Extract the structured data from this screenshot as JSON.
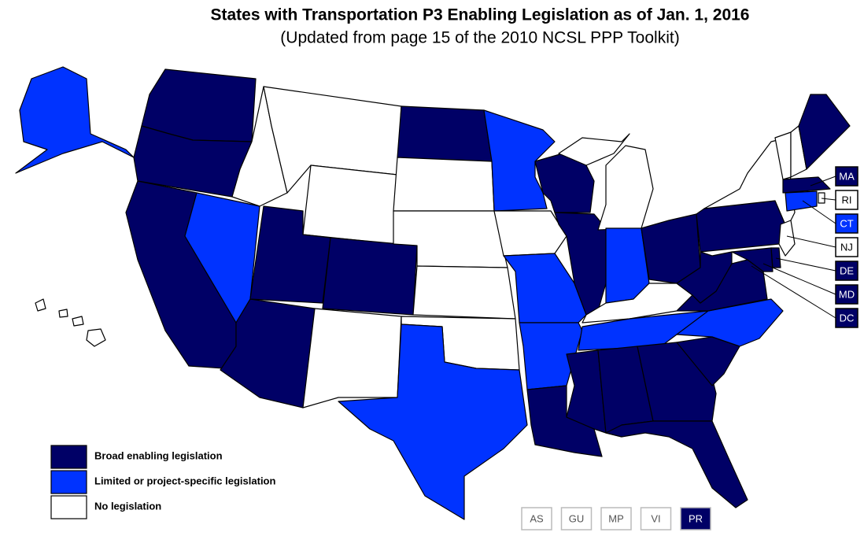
{
  "title": "States with Transportation P3 Enabling Legislation as of Jan. 1, 2016",
  "subtitle": "(Updated from page 15 of the 2010 NCSL PPP Toolkit)",
  "legend": [
    {
      "label": "Broad enabling legislation",
      "color": "#000066"
    },
    {
      "label": "Limited or project-specific legislation",
      "color": "#0033ff"
    },
    {
      "label": "No legislation",
      "color": "#ffffff"
    }
  ],
  "states": [
    0,
    0,
    0,
    1,
    2,
    2,
    2,
    0,
    0,
    0,
    2,
    0,
    2,
    2,
    2,
    2,
    1,
    1,
    2,
    1,
    1,
    0,
    0,
    0,
    2,
    2,
    1,
    0,
    2,
    1,
    0,
    0,
    0,
    0,
    0,
    1,
    0,
    0,
    0,
    2,
    2,
    2,
    0,
    0,
    2,
    1,
    2,
    0,
    0,
    1,
    2,
    2,
    2,
    2
  ],
  "callouts": [
    {
      "label": "MA",
      "category": 0
    },
    {
      "label": "RI",
      "category": 2
    },
    {
      "label": "CT",
      "category": 1
    },
    {
      "label": "NJ",
      "category": 2
    },
    {
      "label": "DE",
      "category": 0
    },
    {
      "label": "MD",
      "category": 0
    },
    {
      "label": "DC",
      "category": 0
    }
  ],
  "territories": [
    {
      "label": "AS",
      "category": 2
    },
    {
      "label": "GU",
      "category": 2
    },
    {
      "label": "MP",
      "category": 2
    },
    {
      "label": "VI",
      "category": 2
    },
    {
      "label": "PR",
      "category": 0
    }
  ]
}
